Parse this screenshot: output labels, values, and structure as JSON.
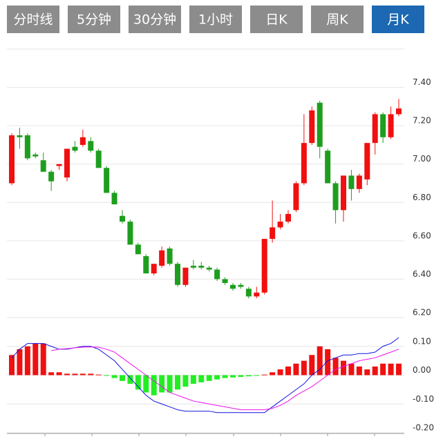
{
  "tabs": [
    "分时线",
    "5分钟",
    "30分钟",
    "1小时",
    "日K",
    "周K",
    "月K"
  ],
  "active_tab": 6,
  "chart_data": [
    {
      "type": "candlestick",
      "open": [
        6.9,
        7.15,
        7.15,
        7.05,
        7.02,
        6.96,
        6.99,
        6.93,
        7.09,
        7.1,
        7.12,
        7.07,
        6.98,
        6.85,
        6.73,
        6.7,
        6.58,
        6.52,
        6.43,
        6.47,
        6.56,
        6.48,
        6.37,
        6.47,
        6.47,
        6.46,
        6.45,
        6.4,
        6.37,
        6.37,
        6.35,
        6.31,
        6.33,
        6.61,
        6.67,
        6.7,
        6.76,
        6.9,
        7.11,
        7.32,
        7.07,
        6.9,
        6.76,
        6.94,
        6.87,
        6.92,
        7.11,
        7.26,
        7.14,
        7.26
      ],
      "high": [
        7.16,
        7.19,
        7.16,
        7.06,
        7.06,
        6.97,
        7.0,
        7.08,
        7.12,
        7.18,
        7.14,
        7.08,
        6.99,
        6.86,
        6.76,
        6.71,
        6.59,
        6.53,
        6.48,
        6.57,
        6.57,
        6.49,
        6.46,
        6.5,
        6.49,
        6.47,
        6.46,
        6.41,
        6.38,
        6.38,
        6.36,
        6.36,
        6.61,
        6.81,
        6.74,
        6.76,
        6.91,
        7.26,
        7.3,
        7.33,
        7.08,
        6.91,
        6.94,
        6.97,
        6.95,
        7.11,
        7.27,
        7.27,
        7.3,
        7.34
      ],
      "low": [
        6.89,
        7.08,
        7.02,
        7.03,
        6.96,
        6.86,
        6.97,
        6.91,
        7.06,
        7.09,
        7.06,
        6.98,
        6.85,
        6.79,
        6.69,
        6.58,
        6.53,
        6.43,
        6.42,
        6.46,
        6.47,
        6.36,
        6.36,
        6.45,
        6.45,
        6.44,
        6.39,
        6.37,
        6.34,
        6.35,
        6.3,
        6.3,
        6.32,
        6.59,
        6.66,
        6.69,
        6.75,
        6.89,
        7.1,
        7.03,
        6.9,
        6.69,
        6.7,
        6.81,
        6.85,
        6.89,
        7.05,
        7.11,
        7.13,
        7.25
      ],
      "close": [
        7.15,
        7.14,
        7.03,
        7.04,
        6.96,
        6.91,
        7.0,
        7.08,
        7.07,
        7.14,
        7.07,
        6.98,
        6.85,
        6.79,
        6.7,
        6.58,
        6.53,
        6.43,
        6.48,
        6.55,
        6.48,
        6.37,
        6.46,
        6.46,
        6.46,
        6.45,
        6.4,
        6.38,
        6.35,
        6.36,
        6.31,
        6.33,
        6.61,
        6.67,
        6.7,
        6.74,
        6.9,
        7.11,
        7.28,
        7.09,
        6.9,
        6.76,
        6.94,
        6.87,
        6.94,
        7.11,
        7.26,
        7.14,
        7.26,
        7.29
      ],
      "up_color": "#f01010",
      "down_color": "#1e9e1e",
      "ylim": [
        6.2,
        7.6
      ],
      "yticks": [
        {
          "value": 6.2,
          "label": "6.20"
        },
        {
          "value": 6.4,
          "label": "6.40"
        },
        {
          "value": 6.6,
          "label": "6.60"
        },
        {
          "value": 6.8,
          "label": "6.80"
        },
        {
          "value": 7.0,
          "label": "7.00"
        },
        {
          "value": 7.2,
          "label": "7.20"
        },
        {
          "value": 7.4,
          "label": "7.40"
        }
      ],
      "grid": true
    },
    {
      "type": "macd",
      "histogram": {
        "values": [
          0.07,
          0.09,
          0.1,
          0.11,
          0.11,
          0.01,
          0.01,
          0.005,
          0.005,
          0.005,
          0.005,
          0.002,
          -0.002,
          -0.01,
          -0.02,
          -0.03,
          -0.05,
          -0.06,
          -0.07,
          -0.06,
          -0.06,
          -0.05,
          -0.04,
          -0.03,
          -0.025,
          -0.02,
          -0.015,
          -0.01,
          -0.008,
          -0.006,
          -0.004,
          -0.002,
          0.002,
          0.01,
          0.02,
          0.03,
          0.04,
          0.05,
          0.07,
          0.1,
          0.09,
          0.06,
          0.05,
          0.04,
          0.03,
          0.02,
          0.03,
          0.04,
          0.04,
          0.04
        ],
        "up_color": "#f01010",
        "down_color": "#22ee22"
      },
      "lines": [
        {
          "color": "#1010e0",
          "values": [
            0.06,
            0.09,
            0.11,
            0.11,
            0.11,
            0.1,
            0.09,
            0.09,
            0.095,
            0.1,
            0.1,
            0.09,
            0.07,
            0.05,
            0.02,
            -0.01,
            -0.04,
            -0.07,
            -0.09,
            -0.1,
            -0.11,
            -0.12,
            -0.125,
            -0.125,
            -0.125,
            -0.125,
            -0.13,
            -0.13,
            -0.13,
            -0.13,
            -0.13,
            -0.13,
            -0.13,
            -0.11,
            -0.09,
            -0.07,
            -0.05,
            -0.03,
            0.0,
            0.02,
            0.05,
            0.06,
            0.07,
            0.07,
            0.075,
            0.075,
            0.08,
            0.1,
            0.11,
            0.13
          ]
        },
        {
          "color": "#ee10ee",
          "values": [
            null,
            null,
            null,
            null,
            null,
            0.085,
            0.09,
            0.092,
            0.095,
            0.097,
            0.098,
            0.097,
            0.09,
            0.08,
            0.06,
            0.04,
            0.02,
            0.0,
            -0.02,
            -0.04,
            -0.06,
            -0.07,
            -0.08,
            -0.09,
            -0.095,
            -0.1,
            -0.105,
            -0.11,
            -0.115,
            -0.12,
            -0.12,
            -0.12,
            -0.12,
            -0.115,
            -0.105,
            -0.09,
            -0.07,
            -0.055,
            -0.04,
            -0.02,
            0.0,
            0.02,
            0.03,
            0.04,
            0.05,
            0.055,
            0.06,
            0.07,
            0.08,
            0.09
          ]
        }
      ],
      "ylim": [
        -0.2,
        0.2
      ],
      "yticks": [
        {
          "value": -0.2,
          "label": "-0.20"
        },
        {
          "value": -0.1,
          "label": "-0.10"
        },
        {
          "value": 0,
          "label": "0.00"
        },
        {
          "value": 0.1,
          "label": "0.10"
        }
      ],
      "grid": true
    }
  ]
}
